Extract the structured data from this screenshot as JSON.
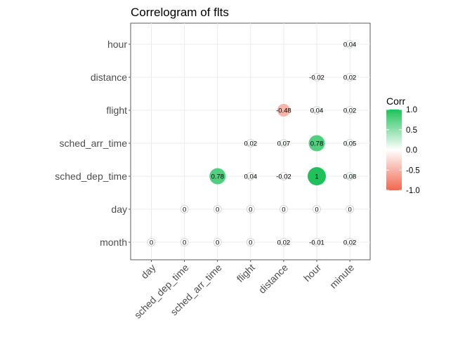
{
  "chart_data": {
    "type": "correlogram",
    "title": "Correlogram of flts",
    "x_categories": [
      "day",
      "sched_dep_time",
      "sched_arr_time",
      "flight",
      "distance",
      "hour",
      "minute"
    ],
    "y_categories": [
      "month",
      "day",
      "sched_dep_time",
      "sched_arr_time",
      "flight",
      "distance",
      "hour"
    ],
    "cells": [
      {
        "x": "day",
        "y": "month",
        "value": 0,
        "label": "0"
      },
      {
        "x": "sched_dep_time",
        "y": "month",
        "value": 0,
        "label": "0"
      },
      {
        "x": "sched_arr_time",
        "y": "month",
        "value": 0,
        "label": "0"
      },
      {
        "x": "flight",
        "y": "month",
        "value": 0,
        "label": "0"
      },
      {
        "x": "distance",
        "y": "month",
        "value": 0.02,
        "label": "0.02"
      },
      {
        "x": "hour",
        "y": "month",
        "value": -0.01,
        "label": "-0.01"
      },
      {
        "x": "minute",
        "y": "month",
        "value": 0.02,
        "label": "0.02"
      },
      {
        "x": "sched_dep_time",
        "y": "day",
        "value": 0,
        "label": "0"
      },
      {
        "x": "sched_arr_time",
        "y": "day",
        "value": 0,
        "label": "0"
      },
      {
        "x": "flight",
        "y": "day",
        "value": 0,
        "label": "0"
      },
      {
        "x": "distance",
        "y": "day",
        "value": 0,
        "label": "0"
      },
      {
        "x": "hour",
        "y": "day",
        "value": 0,
        "label": "0"
      },
      {
        "x": "minute",
        "y": "day",
        "value": 0,
        "label": "0"
      },
      {
        "x": "sched_arr_time",
        "y": "sched_dep_time",
        "value": 0.78,
        "label": "0.78"
      },
      {
        "x": "flight",
        "y": "sched_dep_time",
        "value": 0.04,
        "label": "0.04"
      },
      {
        "x": "distance",
        "y": "sched_dep_time",
        "value": -0.02,
        "label": "-0.02"
      },
      {
        "x": "hour",
        "y": "sched_dep_time",
        "value": 1,
        "label": "1"
      },
      {
        "x": "minute",
        "y": "sched_dep_time",
        "value": 0.08,
        "label": "0.08"
      },
      {
        "x": "flight",
        "y": "sched_arr_time",
        "value": 0.02,
        "label": "0.02"
      },
      {
        "x": "distance",
        "y": "sched_arr_time",
        "value": 0.07,
        "label": "0.07"
      },
      {
        "x": "hour",
        "y": "sched_arr_time",
        "value": 0.78,
        "label": "0.78"
      },
      {
        "x": "minute",
        "y": "sched_arr_time",
        "value": 0.05,
        "label": "0.05"
      },
      {
        "x": "distance",
        "y": "flight",
        "value": -0.48,
        "label": "-0.48"
      },
      {
        "x": "hour",
        "y": "flight",
        "value": 0.04,
        "label": "0.04"
      },
      {
        "x": "minute",
        "y": "flight",
        "value": 0.02,
        "label": "0.02"
      },
      {
        "x": "hour",
        "y": "distance",
        "value": -0.02,
        "label": "-0.02"
      },
      {
        "x": "minute",
        "y": "distance",
        "value": 0.02,
        "label": "0.02"
      },
      {
        "x": "minute",
        "y": "hour",
        "value": 0.04,
        "label": "0.04"
      }
    ],
    "legend": {
      "title": "Corr",
      "placement": "right",
      "ticks": [
        "1.0",
        "0.5",
        "0.0",
        "-0.5",
        "-1.0"
      ],
      "tick_values": [
        1,
        0.5,
        0,
        -0.5,
        -1
      ],
      "range": [
        -1,
        1
      ],
      "colors": {
        "low": "#f0674f",
        "mid": "#ffffff",
        "high": "#1fc25a"
      }
    },
    "grid": true
  }
}
